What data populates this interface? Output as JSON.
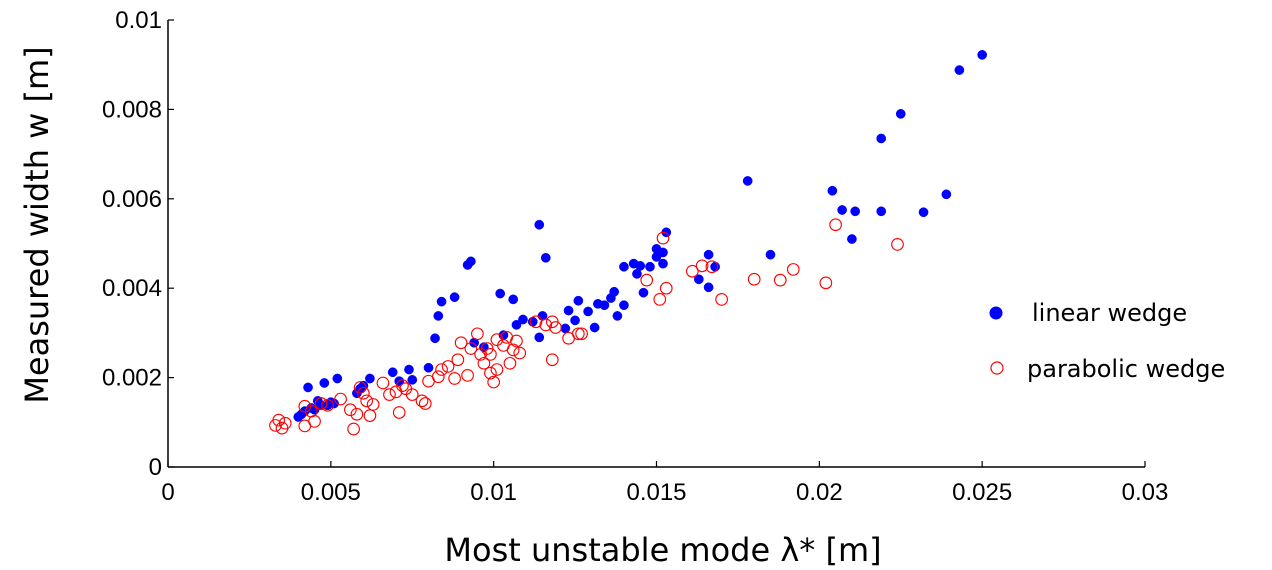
{
  "chart_data": {
    "type": "scatter",
    "xlabel": "Most unstable mode λ* [m]",
    "ylabel": "Measured width w [m]",
    "xlim": [
      0,
      0.03
    ],
    "ylim": [
      0,
      0.01
    ],
    "x_ticks": [
      "0",
      "0.005",
      "0.01",
      "0.015",
      "0.02",
      "0.025",
      "0.03"
    ],
    "y_ticks": [
      "0",
      "0.002",
      "0.004",
      "0.006",
      "0.008",
      "0.01"
    ],
    "grid": false,
    "legend_position": "right",
    "series": [
      {
        "name": "linear wedge",
        "marker": "filled-circle",
        "color": "#0000ff",
        "points": [
          [
            0.004,
            0.00112
          ],
          [
            0.0041,
            0.00118
          ],
          [
            0.0042,
            0.00125
          ],
          [
            0.0043,
            0.00178
          ],
          [
            0.0044,
            0.00132
          ],
          [
            0.0045,
            0.00128
          ],
          [
            0.0046,
            0.00148
          ],
          [
            0.0047,
            0.00138
          ],
          [
            0.0048,
            0.00188
          ],
          [
            0.0049,
            0.00138
          ],
          [
            0.005,
            0.00145
          ],
          [
            0.0051,
            0.00142
          ],
          [
            0.0052,
            0.00198
          ],
          [
            0.0058,
            0.00165
          ],
          [
            0.0059,
            0.00175
          ],
          [
            0.006,
            0.00182
          ],
          [
            0.0062,
            0.00198
          ],
          [
            0.0069,
            0.00212
          ],
          [
            0.0071,
            0.00192
          ],
          [
            0.0074,
            0.00218
          ],
          [
            0.0075,
            0.00195
          ],
          [
            0.008,
            0.00222
          ],
          [
            0.0082,
            0.00288
          ],
          [
            0.0083,
            0.00338
          ],
          [
            0.0084,
            0.0037
          ],
          [
            0.0088,
            0.0038
          ],
          [
            0.0092,
            0.00452
          ],
          [
            0.0093,
            0.0046
          ],
          [
            0.0094,
            0.00278
          ],
          [
            0.0097,
            0.00268
          ],
          [
            0.0102,
            0.00388
          ],
          [
            0.0103,
            0.00295
          ],
          [
            0.0106,
            0.00375
          ],
          [
            0.0107,
            0.00318
          ],
          [
            0.0109,
            0.0033
          ],
          [
            0.0112,
            0.00325
          ],
          [
            0.0114,
            0.0029
          ],
          [
            0.0114,
            0.00542
          ],
          [
            0.0115,
            0.00338
          ],
          [
            0.0116,
            0.00468
          ],
          [
            0.0122,
            0.0031
          ],
          [
            0.0123,
            0.0035
          ],
          [
            0.0125,
            0.00328
          ],
          [
            0.0126,
            0.00372
          ],
          [
            0.0129,
            0.00348
          ],
          [
            0.0131,
            0.00312
          ],
          [
            0.0132,
            0.00365
          ],
          [
            0.0134,
            0.00362
          ],
          [
            0.0136,
            0.00378
          ],
          [
            0.0137,
            0.00392
          ],
          [
            0.0138,
            0.00338
          ],
          [
            0.014,
            0.00362
          ],
          [
            0.014,
            0.00448
          ],
          [
            0.0143,
            0.00455
          ],
          [
            0.0144,
            0.00432
          ],
          [
            0.0145,
            0.0045
          ],
          [
            0.0146,
            0.0039
          ],
          [
            0.0148,
            0.00448
          ],
          [
            0.015,
            0.0047
          ],
          [
            0.015,
            0.00488
          ],
          [
            0.0152,
            0.00455
          ],
          [
            0.0152,
            0.0048
          ],
          [
            0.0153,
            0.00525
          ],
          [
            0.0163,
            0.0042
          ],
          [
            0.0166,
            0.00475
          ],
          [
            0.0166,
            0.00402
          ],
          [
            0.0168,
            0.00448
          ],
          [
            0.0178,
            0.0064
          ],
          [
            0.0185,
            0.00475
          ],
          [
            0.0204,
            0.00618
          ],
          [
            0.0207,
            0.00575
          ],
          [
            0.021,
            0.0051
          ],
          [
            0.0211,
            0.00572
          ],
          [
            0.0219,
            0.00735
          ],
          [
            0.0219,
            0.00572
          ],
          [
            0.0225,
            0.0079
          ],
          [
            0.0232,
            0.0057
          ],
          [
            0.0239,
            0.0061
          ],
          [
            0.0243,
            0.00888
          ],
          [
            0.025,
            0.00922
          ]
        ]
      },
      {
        "name": "parabolic wedge",
        "marker": "open-circle",
        "color": "#ff0000",
        "points": [
          [
            0.0033,
            0.00093
          ],
          [
            0.0034,
            0.00105
          ],
          [
            0.0035,
            0.00087
          ],
          [
            0.0036,
            0.00098
          ],
          [
            0.0042,
            0.00092
          ],
          [
            0.0042,
            0.00136
          ],
          [
            0.0044,
            0.00125
          ],
          [
            0.0045,
            0.00102
          ],
          [
            0.0047,
            0.00142
          ],
          [
            0.0049,
            0.00138
          ],
          [
            0.0053,
            0.00152
          ],
          [
            0.0056,
            0.00128
          ],
          [
            0.0057,
            0.00085
          ],
          [
            0.0058,
            0.00118
          ],
          [
            0.0059,
            0.00178
          ],
          [
            0.006,
            0.00165
          ],
          [
            0.0061,
            0.00148
          ],
          [
            0.0062,
            0.00115
          ],
          [
            0.0063,
            0.0014
          ],
          [
            0.0066,
            0.00188
          ],
          [
            0.0068,
            0.00162
          ],
          [
            0.007,
            0.00168
          ],
          [
            0.0071,
            0.00122
          ],
          [
            0.0072,
            0.00182
          ],
          [
            0.0073,
            0.00175
          ],
          [
            0.0075,
            0.00162
          ],
          [
            0.0078,
            0.00148
          ],
          [
            0.0079,
            0.00142
          ],
          [
            0.008,
            0.00192
          ],
          [
            0.0083,
            0.00202
          ],
          [
            0.0084,
            0.00218
          ],
          [
            0.0086,
            0.00225
          ],
          [
            0.0088,
            0.00198
          ],
          [
            0.0089,
            0.0024
          ],
          [
            0.009,
            0.00278
          ],
          [
            0.0092,
            0.00205
          ],
          [
            0.0093,
            0.00265
          ],
          [
            0.0095,
            0.00298
          ],
          [
            0.0096,
            0.00252
          ],
          [
            0.0097,
            0.00232
          ],
          [
            0.0098,
            0.00265
          ],
          [
            0.0099,
            0.00252
          ],
          [
            0.0099,
            0.0021
          ],
          [
            0.01,
            0.0019
          ],
          [
            0.0101,
            0.00218
          ],
          [
            0.0101,
            0.00285
          ],
          [
            0.0103,
            0.00272
          ],
          [
            0.0104,
            0.0029
          ],
          [
            0.0105,
            0.00232
          ],
          [
            0.0106,
            0.00262
          ],
          [
            0.0107,
            0.00282
          ],
          [
            0.0108,
            0.00255
          ],
          [
            0.0113,
            0.00325
          ],
          [
            0.0116,
            0.00318
          ],
          [
            0.0118,
            0.0024
          ],
          [
            0.0118,
            0.00325
          ],
          [
            0.0119,
            0.00312
          ],
          [
            0.0123,
            0.00288
          ],
          [
            0.0126,
            0.00298
          ],
          [
            0.0127,
            0.00298
          ],
          [
            0.0147,
            0.00418
          ],
          [
            0.0151,
            0.00375
          ],
          [
            0.0152,
            0.00512
          ],
          [
            0.0153,
            0.004
          ],
          [
            0.0161,
            0.00438
          ],
          [
            0.0164,
            0.0045
          ],
          [
            0.0167,
            0.00448
          ],
          [
            0.017,
            0.00375
          ],
          [
            0.018,
            0.0042
          ],
          [
            0.0188,
            0.00418
          ],
          [
            0.0192,
            0.00442
          ],
          [
            0.0202,
            0.00412
          ],
          [
            0.0205,
            0.00542
          ],
          [
            0.0224,
            0.00498
          ]
        ]
      }
    ]
  }
}
